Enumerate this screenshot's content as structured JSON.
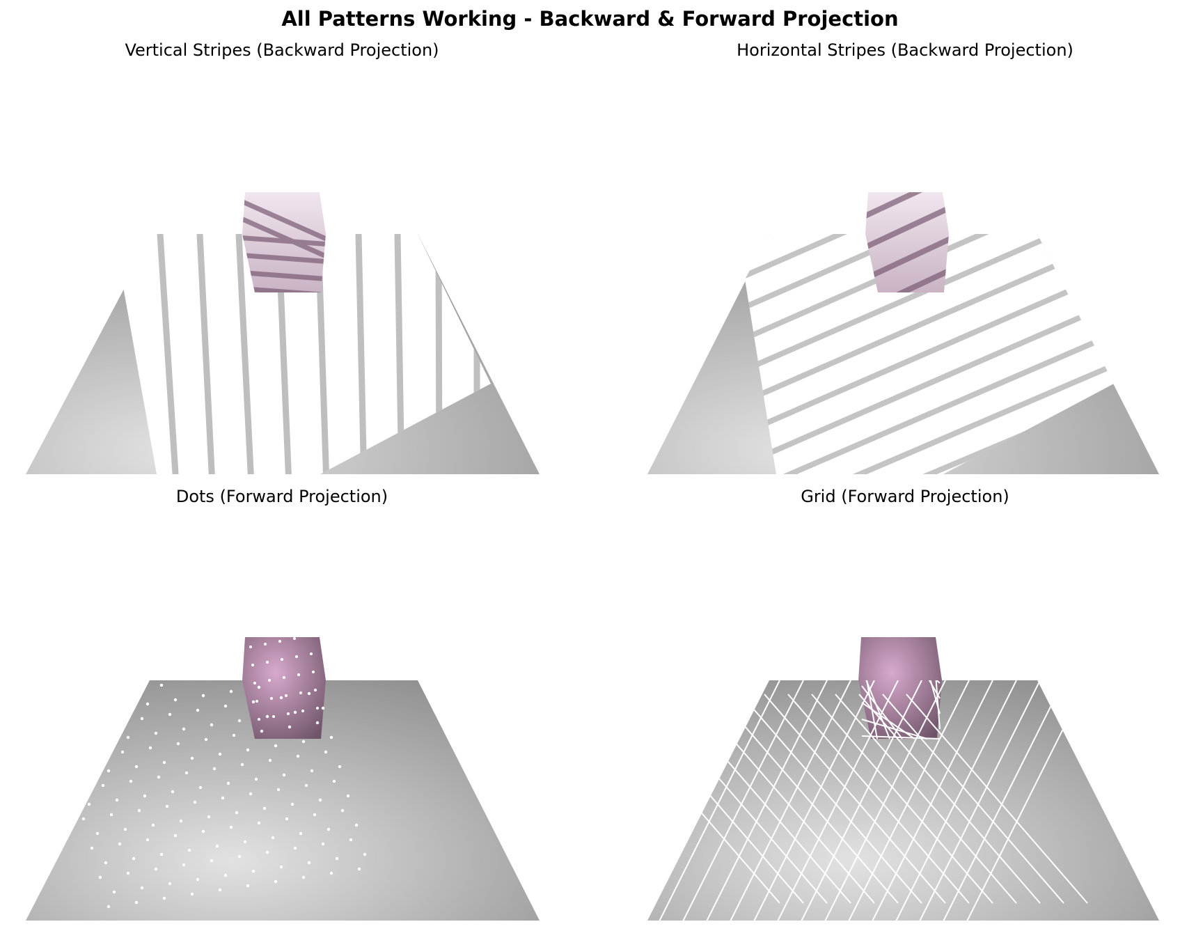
{
  "figure": {
    "title": "All Patterns Working - Backward & Forward Projection"
  },
  "panels": [
    {
      "title": "Vertical Stripes (Backward Projection)",
      "pattern": "vertical-stripes",
      "projection": "backward"
    },
    {
      "title": "Horizontal Stripes (Backward Projection)",
      "pattern": "horizontal-stripes",
      "projection": "backward"
    },
    {
      "title": "Dots (Forward Projection)",
      "pattern": "dots",
      "projection": "forward"
    },
    {
      "title": "Grid (Forward Projection)",
      "pattern": "grid",
      "projection": "forward"
    }
  ],
  "colors": {
    "floor_light": "#e2e2e2",
    "floor_dark": "#8e8e8e",
    "cube_light": "#d7a9cc",
    "cube_dark": "#6e5468",
    "stripe_dark": "#8a8a8a",
    "cube_stripe": "#7a5a72",
    "pattern_white": "#ffffff"
  }
}
